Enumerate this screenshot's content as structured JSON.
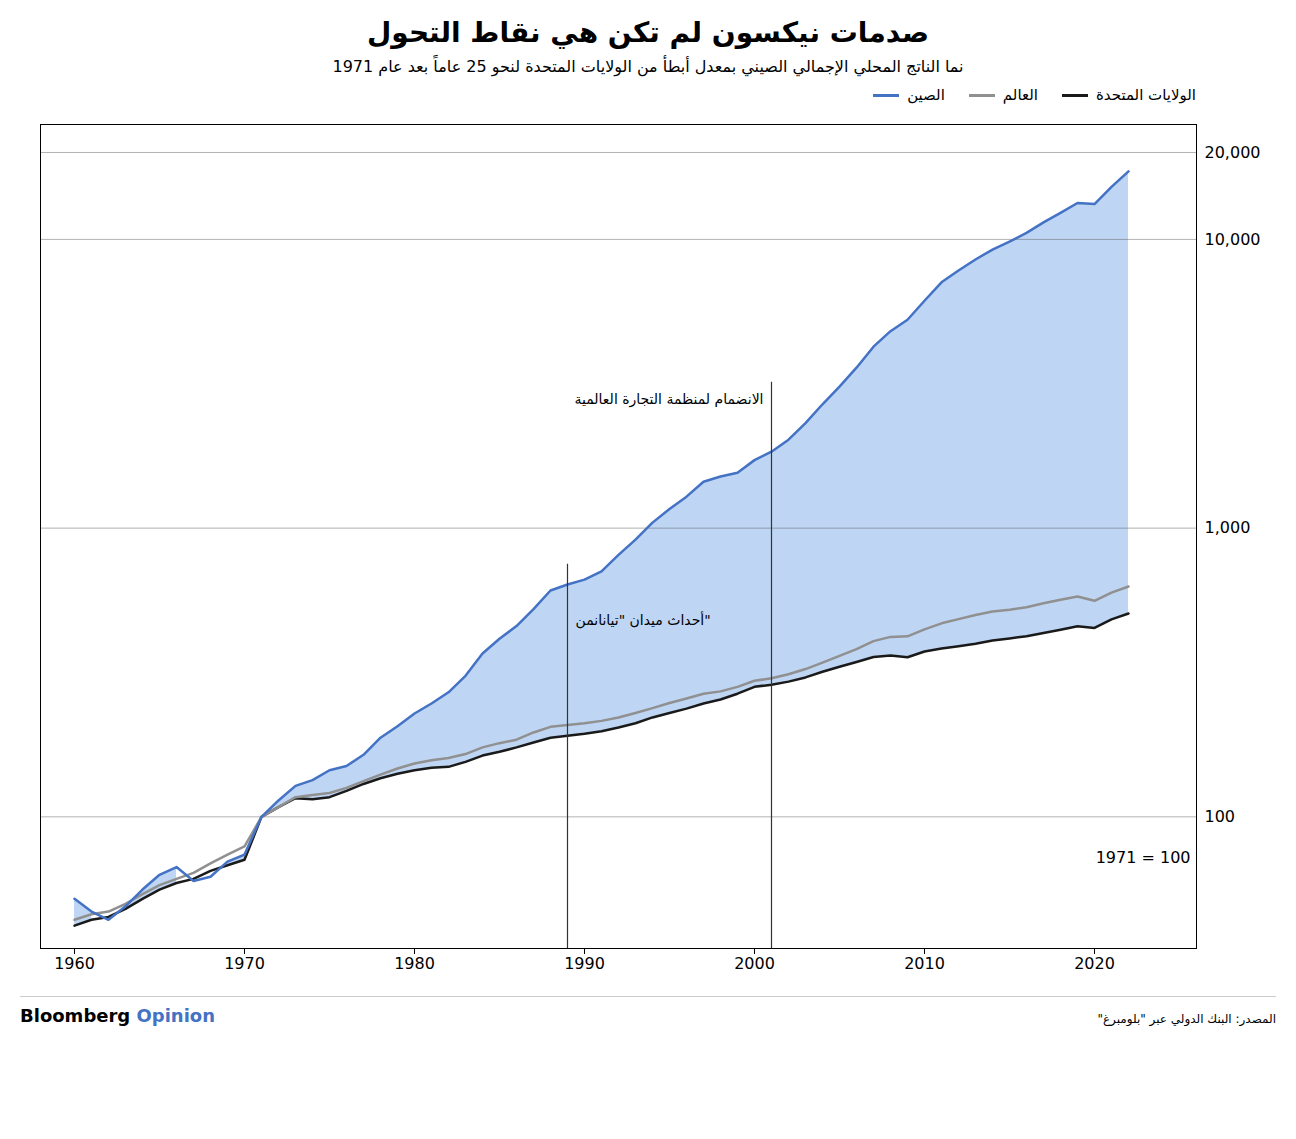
{
  "chart_data": {
    "type": "line",
    "title": "صدمات نيكسون لم تكن هي نقاط التحول",
    "subtitle": "نما الناتج المحلي الإجمالي الصيني بمعدل أبطأ من الولايات المتحدة لنحو 25 عاماً بعد عام 1971",
    "x": [
      1960,
      1961,
      1962,
      1963,
      1964,
      1965,
      1966,
      1967,
      1968,
      1969,
      1970,
      1971,
      1972,
      1973,
      1974,
      1975,
      1976,
      1977,
      1978,
      1979,
      1980,
      1981,
      1982,
      1983,
      1984,
      1985,
      1986,
      1987,
      1988,
      1989,
      1990,
      1991,
      1992,
      1993,
      1994,
      1995,
      1996,
      1997,
      1998,
      1999,
      2000,
      2001,
      2002,
      2003,
      2004,
      2005,
      2006,
      2007,
      2008,
      2009,
      2010,
      2011,
      2012,
      2013,
      2014,
      2015,
      2016,
      2017,
      2018,
      2019,
      2020,
      2021,
      2022
    ],
    "series": [
      {
        "name": "الصين",
        "color": "#4472C4",
        "values": [
          52,
          47,
          44,
          49,
          56,
          63,
          67,
          60,
          62,
          70,
          74,
          100,
          114,
          128,
          134,
          145,
          150,
          164,
          188,
          206,
          228,
          247,
          270,
          308,
          368,
          414,
          458,
          524,
          608,
          638,
          663,
          708,
          808,
          912,
          1045,
          1165,
          1285,
          1448,
          1510,
          1555,
          1720,
          1840,
          2025,
          2310,
          2685,
          3090,
          3595,
          4250,
          4810,
          5270,
          6130,
          7100,
          7800,
          8520,
          9220,
          9820,
          10530,
          11450,
          12360,
          13370,
          13260,
          15200,
          17200
        ]
      },
      {
        "name": "العالم",
        "color": "#909090",
        "values": [
          44,
          46,
          47,
          50,
          54,
          58,
          61,
          64,
          69,
          74,
          79,
          100,
          108,
          117,
          119,
          121,
          126,
          133,
          140,
          147,
          153,
          157,
          160,
          165,
          174,
          180,
          185,
          196,
          205,
          208,
          211,
          215,
          221,
          229,
          238,
          248,
          257,
          267,
          272,
          282,
          296,
          302,
          312,
          325,
          342,
          361,
          381,
          406,
          420,
          422,
          446,
          468,
          484,
          500,
          514,
          522,
          532,
          549,
          565,
          580,
          560,
          598,
          628
        ]
      },
      {
        "name": "الولايات المتحدة",
        "color": "#1a1a1a",
        "values": [
          42,
          44,
          45,
          48,
          52,
          56,
          59,
          61,
          65,
          68,
          71,
          100,
          108,
          116,
          115,
          117,
          123,
          130,
          136,
          141,
          145,
          148,
          149,
          155,
          163,
          168,
          174,
          181,
          188,
          191,
          194,
          198,
          204,
          211,
          221,
          229,
          237,
          247,
          255,
          267,
          282,
          287,
          294,
          304,
          318,
          331,
          344,
          358,
          362,
          357,
          374,
          383,
          390,
          398,
          408,
          415,
          422,
          433,
          445,
          457,
          451,
          483,
          506
        ]
      }
    ],
    "color": "#a8c8f0",
    "log": "y",
    "xlim": [
      1958,
      2026
    ],
    "xticks": [
      1960,
      1970,
      1980,
      1990,
      2000,
      2010,
      2020
    ],
    "ylim": [
      35,
      25000
    ],
    "yticks": [
      100,
      {
        "value": 1000,
        "label": "1,000"
      },
      {
        "value": 10000,
        "label": "10,000"
      },
      {
        "value": 20000,
        "label": "20,000"
      }
    ],
    "grid": true,
    "legend": "top-right",
    "annotations": [
      {
        "x": 1989,
        "text": "أحداث ميدان \"تيانانمن\""
      },
      {
        "x": 2001,
        "text": "الانضمام لمنظمة التجارة العالمية"
      },
      {
        "text": "1971 = 100"
      }
    ],
    "source": "المصدر: البنك الدولي عبر \"بلومبرغ\"",
    "credit": "Bloomberg Opinion"
  }
}
